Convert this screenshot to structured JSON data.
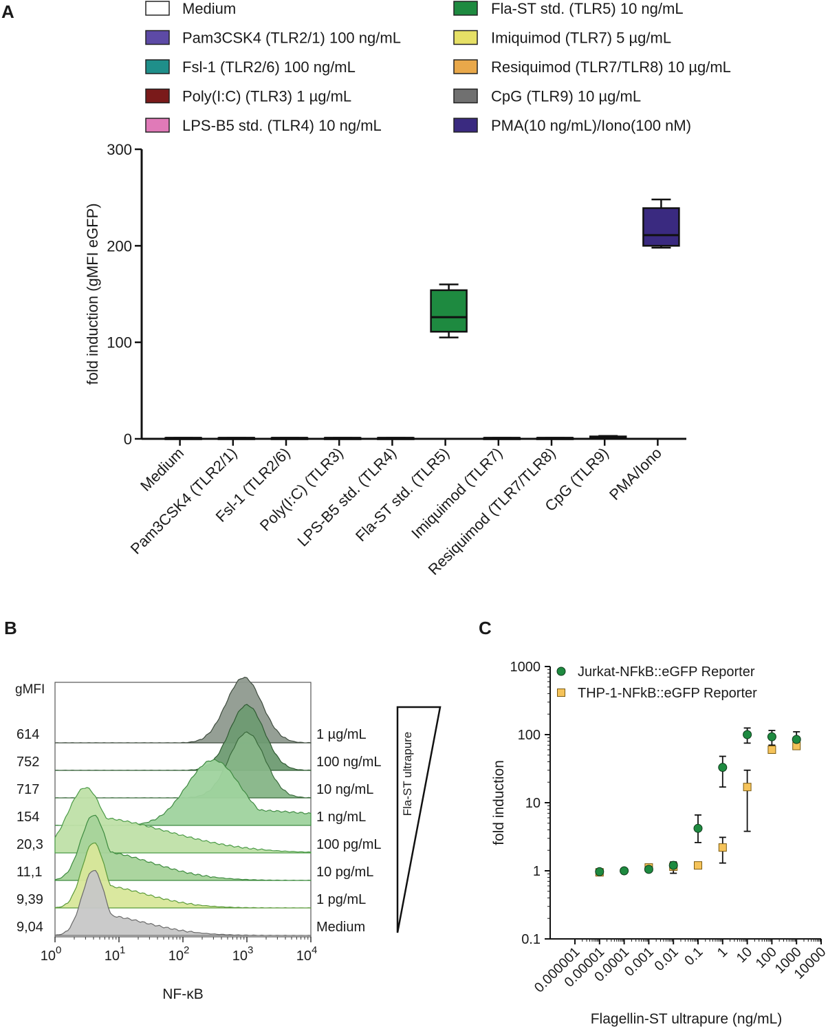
{
  "chart_data": [
    {
      "panel": "A",
      "type": "box",
      "ylabel": "fold induction (gMFI eGFP)",
      "ylim": [
        0,
        300
      ],
      "yticks": [
        0,
        100,
        200,
        300
      ],
      "legend": [
        {
          "label": "Medium",
          "color": "#ffffff"
        },
        {
          "label": "Pam3CSK4 (TLR2/1) 100 ng/mL",
          "color": "#5d4aa6"
        },
        {
          "label": "Fsl-1 (TLR2/6) 100 ng/mL",
          "color": "#1f8f8a"
        },
        {
          "label": "Poly(I:C) (TLR3) 1 µg/mL",
          "color": "#7a1a1a"
        },
        {
          "label": "LPS-B5 std. (TLR4) 10 ng/mL",
          "color": "#e07ab8"
        },
        {
          "label": "Fla-ST std. (TLR5) 10 ng/mL",
          "color": "#1e8a40"
        },
        {
          "label": "Imiquimod (TLR7) 5 µg/mL",
          "color": "#e6e066"
        },
        {
          "label": "Resiquimod (TLR7/TLR8) 10 µg/mL",
          "color": "#e9a84a"
        },
        {
          "label": "CpG (TLR9) 10 µg/mL",
          "color": "#707070"
        },
        {
          "label": "PMA(10 ng/mL)/Iono(100 nM)",
          "color": "#3a2a80"
        }
      ],
      "categories": [
        "Medium",
        "Pam3CSK4 (TLR2/1)",
        "Fsl-1 (TLR2/6)",
        "Poly(I:C) (TLR3)",
        "LPS-B5 std. (TLR4)",
        "Fla-ST std. (TLR5)",
        "Imiquimod (TLR7)",
        "Resiquimod (TLR7/TLR8)",
        "CpG (TLR9)",
        "PMA/Iono"
      ],
      "boxes": [
        {
          "min": 1,
          "q1": 1,
          "median": 1,
          "q3": 1,
          "max": 1
        },
        {
          "min": 1,
          "q1": 1,
          "median": 1,
          "q3": 1,
          "max": 1
        },
        {
          "min": 1,
          "q1": 1,
          "median": 1,
          "q3": 1,
          "max": 1
        },
        {
          "min": 1,
          "q1": 1,
          "median": 1,
          "q3": 1,
          "max": 1
        },
        {
          "min": 1,
          "q1": 1,
          "median": 1,
          "q3": 1,
          "max": 1
        },
        {
          "min": 105,
          "q1": 111,
          "median": 126,
          "q3": 154,
          "max": 160
        },
        {
          "min": 1,
          "q1": 1,
          "median": 1,
          "q3": 1,
          "max": 1
        },
        {
          "min": 1,
          "q1": 1,
          "median": 1,
          "q3": 1,
          "max": 1
        },
        {
          "min": 1,
          "q1": 1.5,
          "median": 2,
          "q3": 2.5,
          "max": 3
        },
        {
          "min": 198,
          "q1": 200,
          "median": 211,
          "q3": 239,
          "max": 248
        }
      ]
    },
    {
      "panel": "B",
      "type": "histogram-overlay",
      "xlabel": "NF-κB",
      "xscale": "log",
      "xlim": [
        1,
        10000
      ],
      "xticks": [
        {
          "base": "10",
          "exp": "0"
        },
        {
          "base": "10",
          "exp": "1"
        },
        {
          "base": "10",
          "exp": "2"
        },
        {
          "base": "10",
          "exp": "3"
        },
        {
          "base": "10",
          "exp": "4"
        }
      ],
      "gmfi_header": "gMFI",
      "gradient_label": "Fla-ST ultrapure",
      "series": [
        {
          "label": "1 µg/mL",
          "gmfi": "614",
          "fill": "#8f9a8f",
          "stroke": "#3d4a3d",
          "peak": 900,
          "width": 0.28,
          "tail": 0.0
        },
        {
          "label": "100 ng/mL",
          "gmfi": "752",
          "fill": "#6e9b72",
          "stroke": "#2f5a32",
          "peak": 1000,
          "width": 0.27,
          "tail": 0.0
        },
        {
          "label": "10 ng/mL",
          "gmfi": "717",
          "fill": "#86b587",
          "stroke": "#3a6a3c",
          "peak": 1000,
          "width": 0.28,
          "tail": 0.0
        },
        {
          "label": "1 ng/mL",
          "gmfi": "154",
          "fill": "#9fd39e",
          "stroke": "#3f8a42",
          "peak": 300,
          "width": 0.42,
          "tail": 0.25
        },
        {
          "label": "100 pg/mL",
          "gmfi": "20,3",
          "fill": "#bfe0a8",
          "stroke": "#4a9a46",
          "peak": 3,
          "width": 0.28,
          "tail": 0.55
        },
        {
          "label": "10 pg/mL",
          "gmfi": "11,1",
          "fill": "#a6d39a",
          "stroke": "#3c8a3e",
          "peak": 4,
          "width": 0.2,
          "tail": 0.45
        },
        {
          "label": "1 pg/mL",
          "gmfi": "9,39",
          "fill": "#d8e79a",
          "stroke": "#5a9a3a",
          "peak": 4,
          "width": 0.18,
          "tail": 0.35
        },
        {
          "label": "Medium",
          "gmfi": "9,04",
          "fill": "#c7c7c7",
          "stroke": "#6a6a6a",
          "peak": 4,
          "width": 0.18,
          "tail": 0.32
        }
      ]
    },
    {
      "panel": "C",
      "type": "scatter",
      "xlabel": "Flagellin-ST ultrapure (ng/mL)",
      "ylabel": "fold induction",
      "xscale": "log",
      "yscale": "log",
      "xlim": [
        1e-06,
        10000
      ],
      "ylim": [
        0.1,
        1000
      ],
      "xtick_labels": [
        "0.000001",
        "0.00001",
        "0.0001",
        "0.001",
        "0.01",
        "0.1",
        "1",
        "10",
        "100",
        "1000",
        "10000"
      ],
      "ytick_labels": [
        "0.1",
        "1",
        "10",
        "100",
        "1000"
      ],
      "series": [
        {
          "name": "Jurkat-NFkB::eGFP Reporter",
          "marker": "circle",
          "color": "#1e8a40",
          "x": [
            1e-05,
            0.0001,
            0.001,
            0.01,
            0.1,
            1,
            10,
            100,
            1000
          ],
          "y": [
            0.97,
            1.0,
            1.05,
            1.2,
            4.2,
            33,
            100,
            93,
            85
          ],
          "err_low": [
            0.92,
            0.97,
            1.0,
            1.1,
            2.6,
            17,
            75,
            70,
            65
          ],
          "err_high": [
            1.02,
            1.03,
            1.1,
            1.35,
            6.6,
            48,
            125,
            115,
            110
          ]
        },
        {
          "name": "THP-1-NFkB::eGFP Reporter",
          "marker": "square",
          "color": "#f5c35a",
          "x": [
            1e-05,
            0.001,
            0.01,
            0.1,
            1,
            10,
            100,
            1000
          ],
          "y": [
            0.95,
            1.12,
            1.15,
            1.2,
            2.2,
            17,
            60,
            68
          ],
          "err_low": [
            0.9,
            1.05,
            0.92,
            1.15,
            1.3,
            3.8,
            55,
            62
          ],
          "err_high": [
            1.0,
            1.2,
            1.3,
            1.25,
            3.1,
            30,
            66,
            75
          ]
        }
      ]
    }
  ]
}
